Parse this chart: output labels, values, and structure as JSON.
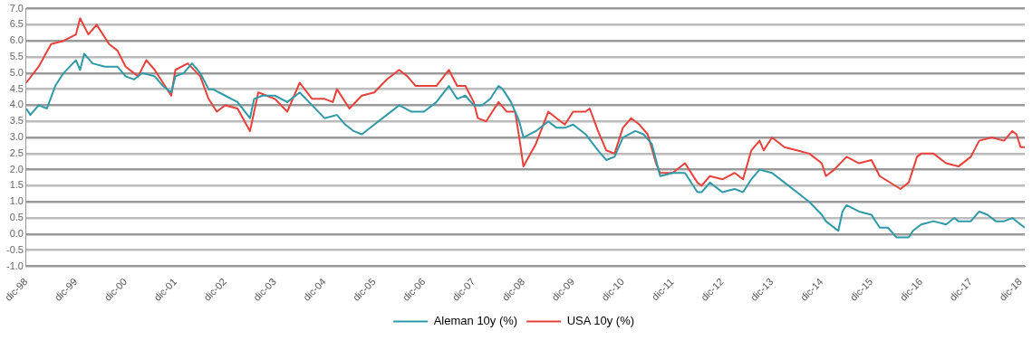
{
  "chart_data": {
    "type": "line",
    "grid": "y",
    "legend": "bottom",
    "marker": "none",
    "line_style": "solid",
    "ylim": [
      -1.0,
      7.0
    ],
    "yticks": [
      {
        "value": -1,
        "label": "-1.0"
      },
      {
        "value": -0.5,
        "label": "-0.5"
      },
      {
        "value": 0,
        "label": "0.0"
      },
      {
        "value": 0.5,
        "label": "0.5"
      },
      {
        "value": 1,
        "label": "1.0"
      },
      {
        "value": 1.5,
        "label": "1.5"
      },
      {
        "value": 2,
        "label": "2.0"
      },
      {
        "value": 2.5,
        "label": "2.5"
      },
      {
        "value": 3,
        "label": "3.0"
      },
      {
        "value": 3.5,
        "label": "3.5"
      },
      {
        "value": 4,
        "label": "4.0"
      },
      {
        "value": 4.5,
        "label": "4.5"
      },
      {
        "value": 5,
        "label": "5.0"
      },
      {
        "value": 5.5,
        "label": "5.5"
      },
      {
        "value": 6,
        "label": "6.0"
      },
      {
        "value": 6.5,
        "label": "6.5"
      },
      {
        "value": 7,
        "label": "7.0"
      }
    ],
    "xlim": [
      "1998-12",
      "2019-01"
    ],
    "xticks": [
      {
        "value": "1998-12",
        "label": "dic-98"
      },
      {
        "value": "1999-12",
        "label": "dic-99"
      },
      {
        "value": "2000-12",
        "label": "dic-00"
      },
      {
        "value": "2001-12",
        "label": "dic-01"
      },
      {
        "value": "2002-12",
        "label": "dic-02"
      },
      {
        "value": "2003-12",
        "label": "dic-03"
      },
      {
        "value": "2004-12",
        "label": "dic-04"
      },
      {
        "value": "2005-12",
        "label": "dic-05"
      },
      {
        "value": "2006-12",
        "label": "dic-06"
      },
      {
        "value": "2007-12",
        "label": "dic-07"
      },
      {
        "value": "2008-12",
        "label": "dic-08"
      },
      {
        "value": "2009-12",
        "label": "dic-09"
      },
      {
        "value": "2010-12",
        "label": "dic-10"
      },
      {
        "value": "2011-12",
        "label": "dic-11"
      },
      {
        "value": "2012-12",
        "label": "dic-12"
      },
      {
        "value": "2013-12",
        "label": "dic-13"
      },
      {
        "value": "2014-12",
        "label": "dic-14"
      },
      {
        "value": "2015-12",
        "label": "dic-15"
      },
      {
        "value": "2016-12",
        "label": "dic-16"
      },
      {
        "value": "2017-12",
        "label": "dic-17"
      },
      {
        "value": "2018-12",
        "label": "dic-18"
      }
    ],
    "series": [
      {
        "name": "Aleman 10y (%)",
        "color": "#2e9aa8",
        "x": [
          "1998-12",
          "1999-01",
          "1999-03",
          "1999-05",
          "1999-07",
          "1999-09",
          "1999-12",
          "2000-01",
          "2000-02",
          "2000-04",
          "2000-07",
          "2000-10",
          "2000-12",
          "2001-02",
          "2001-04",
          "2001-07",
          "2001-09",
          "2001-11",
          "2001-12",
          "2002-02",
          "2002-04",
          "2002-06",
          "2002-08",
          "2002-09",
          "2002-12",
          "2003-03",
          "2003-06",
          "2003-07",
          "2003-09",
          "2003-12",
          "2004-03",
          "2004-06",
          "2004-09",
          "2004-12",
          "2005-03",
          "2005-05",
          "2005-07",
          "2005-09",
          "2005-12",
          "2006-03",
          "2006-06",
          "2006-09",
          "2006-12",
          "2007-03",
          "2007-06",
          "2007-08",
          "2007-10",
          "2007-12",
          "2008-02",
          "2008-04",
          "2008-06",
          "2008-07",
          "2008-09",
          "2008-11",
          "2008-12",
          "2009-03",
          "2009-06",
          "2009-08",
          "2009-10",
          "2009-12",
          "2010-03",
          "2010-06",
          "2010-08",
          "2010-10",
          "2010-12",
          "2011-03",
          "2011-05",
          "2011-07",
          "2011-08",
          "2011-09",
          "2011-12",
          "2012-03",
          "2012-06",
          "2012-07",
          "2012-09",
          "2012-12",
          "2013-03",
          "2013-05",
          "2013-07",
          "2013-09",
          "2013-12",
          "2014-03",
          "2014-06",
          "2014-09",
          "2014-12",
          "2015-01",
          "2015-04",
          "2015-05",
          "2015-06",
          "2015-09",
          "2015-12",
          "2016-02",
          "2016-04",
          "2016-06",
          "2016-07",
          "2016-09",
          "2016-10",
          "2016-12",
          "2017-03",
          "2017-06",
          "2017-08",
          "2017-09",
          "2017-12",
          "2018-02",
          "2018-04",
          "2018-06",
          "2018-08",
          "2018-10",
          "2018-12",
          "2019-01"
        ],
        "values": [
          3.9,
          3.7,
          4.0,
          3.9,
          4.6,
          5.0,
          5.4,
          5.1,
          5.6,
          5.3,
          5.2,
          5.2,
          4.9,
          4.8,
          5.0,
          4.9,
          4.6,
          4.4,
          4.9,
          5.0,
          5.3,
          5.0,
          4.5,
          4.5,
          4.3,
          4.1,
          3.6,
          4.2,
          4.3,
          4.3,
          4.1,
          4.4,
          4.0,
          3.6,
          3.7,
          3.4,
          3.2,
          3.1,
          3.4,
          3.7,
          4.0,
          3.8,
          3.8,
          4.1,
          4.6,
          4.2,
          4.3,
          4.0,
          4.0,
          4.2,
          4.6,
          4.5,
          4.1,
          3.5,
          3.0,
          3.2,
          3.5,
          3.3,
          3.3,
          3.4,
          3.1,
          2.6,
          2.3,
          2.4,
          3.0,
          3.2,
          3.1,
          2.8,
          2.3,
          1.8,
          1.9,
          1.9,
          1.3,
          1.3,
          1.6,
          1.3,
          1.4,
          1.3,
          1.7,
          2.0,
          1.9,
          1.6,
          1.3,
          1.0,
          0.6,
          0.4,
          0.1,
          0.7,
          0.9,
          0.7,
          0.6,
          0.2,
          0.2,
          -0.1,
          -0.1,
          -0.1,
          0.1,
          0.3,
          0.4,
          0.3,
          0.5,
          0.4,
          0.4,
          0.7,
          0.6,
          0.4,
          0.4,
          0.5,
          0.3,
          0.2
        ]
      },
      {
        "name": "USA 10y (%)",
        "color": "#e8413a",
        "x": [
          "1998-12",
          "1999-03",
          "1999-06",
          "1999-09",
          "1999-12",
          "2000-01",
          "2000-03",
          "2000-05",
          "2000-08",
          "2000-10",
          "2000-12",
          "2001-03",
          "2001-05",
          "2001-07",
          "2001-09",
          "2001-11",
          "2001-12",
          "2002-03",
          "2002-06",
          "2002-08",
          "2002-10",
          "2002-12",
          "2003-03",
          "2003-06",
          "2003-08",
          "2003-10",
          "2003-12",
          "2004-03",
          "2004-06",
          "2004-09",
          "2004-12",
          "2005-02",
          "2005-03",
          "2005-06",
          "2005-09",
          "2005-12",
          "2006-03",
          "2006-06",
          "2006-08",
          "2006-10",
          "2006-12",
          "2007-03",
          "2007-06",
          "2007-08",
          "2007-10",
          "2007-12",
          "2008-01",
          "2008-03",
          "2008-06",
          "2008-08",
          "2008-10",
          "2008-11",
          "2008-12",
          "2009-03",
          "2009-06",
          "2009-08",
          "2009-10",
          "2009-12",
          "2010-03",
          "2010-04",
          "2010-06",
          "2010-08",
          "2010-10",
          "2010-12",
          "2011-02",
          "2011-04",
          "2011-06",
          "2011-08",
          "2011-09",
          "2011-12",
          "2012-03",
          "2012-06",
          "2012-07",
          "2012-09",
          "2012-12",
          "2013-03",
          "2013-05",
          "2013-07",
          "2013-09",
          "2013-10",
          "2013-12",
          "2014-03",
          "2014-06",
          "2014-09",
          "2014-12",
          "2015-01",
          "2015-03",
          "2015-06",
          "2015-09",
          "2015-12",
          "2016-02",
          "2016-07",
          "2016-09",
          "2016-11",
          "2016-12",
          "2017-03",
          "2017-06",
          "2017-09",
          "2017-12",
          "2018-02",
          "2018-05",
          "2018-08",
          "2018-10",
          "2018-11",
          "2018-12",
          "2019-01"
        ],
        "values": [
          4.7,
          5.2,
          5.9,
          6.0,
          6.2,
          6.7,
          6.2,
          6.5,
          5.9,
          5.7,
          5.2,
          4.9,
          5.4,
          5.1,
          4.7,
          4.3,
          5.1,
          5.3,
          4.9,
          4.2,
          3.8,
          4.0,
          3.9,
          3.2,
          4.4,
          4.3,
          4.2,
          3.8,
          4.7,
          4.2,
          4.2,
          4.1,
          4.5,
          3.9,
          4.3,
          4.4,
          4.8,
          5.1,
          4.9,
          4.6,
          4.6,
          4.6,
          5.1,
          4.6,
          4.6,
          4.1,
          3.6,
          3.5,
          4.1,
          3.8,
          3.8,
          3.0,
          2.1,
          2.8,
          3.8,
          3.6,
          3.4,
          3.8,
          3.8,
          3.9,
          3.2,
          2.6,
          2.5,
          3.3,
          3.6,
          3.4,
          3.1,
          2.2,
          1.9,
          1.9,
          2.2,
          1.6,
          1.5,
          1.8,
          1.7,
          1.9,
          1.7,
          2.6,
          2.9,
          2.6,
          3.0,
          2.7,
          2.6,
          2.5,
          2.2,
          1.8,
          2.0,
          2.4,
          2.2,
          2.3,
          1.8,
          1.4,
          1.6,
          2.4,
          2.5,
          2.5,
          2.2,
          2.1,
          2.4,
          2.9,
          3.0,
          2.9,
          3.2,
          3.1,
          2.7,
          2.7
        ]
      }
    ]
  }
}
